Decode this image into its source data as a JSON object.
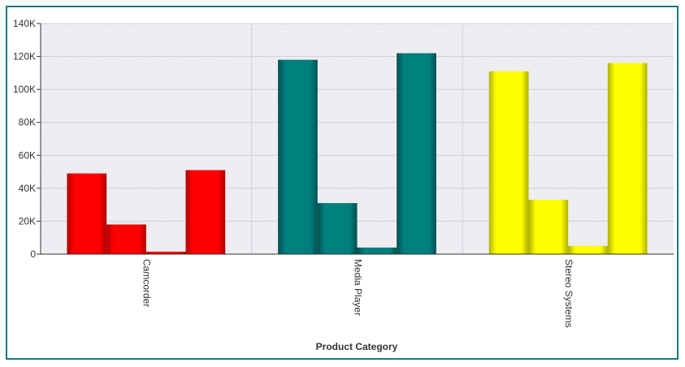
{
  "chart_data": {
    "type": "bar",
    "xlabel": "Product Category",
    "ylabel": "",
    "ylim": [
      0,
      140000
    ],
    "yticks": [
      {
        "value": 0,
        "label": "0"
      },
      {
        "value": 20000,
        "label": "20K"
      },
      {
        "value": 40000,
        "label": "40K"
      },
      {
        "value": 60000,
        "label": "60K"
      },
      {
        "value": 80000,
        "label": "80K"
      },
      {
        "value": 100000,
        "label": "100K"
      },
      {
        "value": 120000,
        "label": "120K"
      },
      {
        "value": 140000,
        "label": "140K"
      }
    ],
    "grid": true,
    "categories": [
      "Camcorder",
      "Media Player",
      "Stereo Systems"
    ],
    "category_colors": [
      "#ff0000",
      "#007f7f",
      "#ffff00"
    ],
    "category_shades": [
      "#b00000",
      "#004f4f",
      "#b0b000"
    ],
    "series": [
      {
        "values": [
          49000,
          118000,
          111000
        ]
      },
      {
        "values": [
          18000,
          31000,
          33000
        ]
      },
      {
        "values": [
          1500,
          4000,
          5000
        ]
      },
      {
        "values": [
          51000,
          122000,
          116000
        ]
      }
    ]
  }
}
